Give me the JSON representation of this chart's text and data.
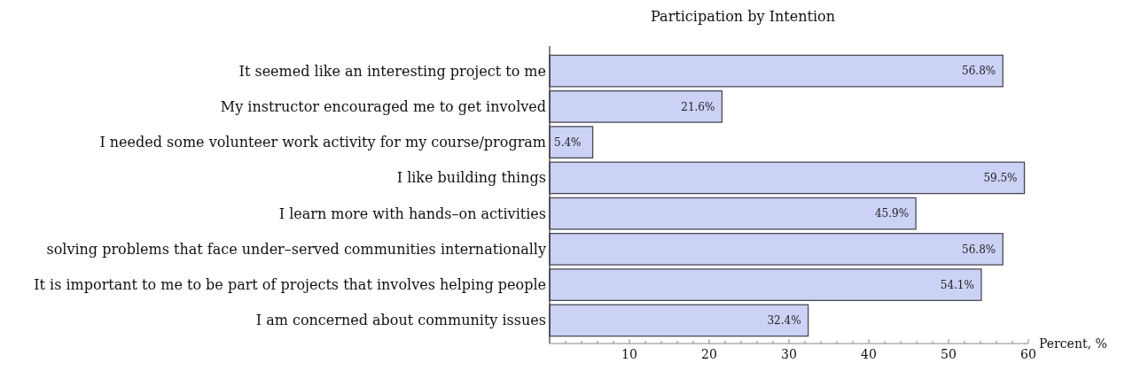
{
  "chart_data": {
    "type": "bar",
    "orientation": "horizontal",
    "title": "Participation by Intention",
    "xlabel": "Percent, %",
    "categories": [
      "It seemed like an interesting project to me",
      "My instructor encouraged me to get involved",
      "I needed some volunteer work activity for my course/program",
      "I like building things",
      "I learn more with hands–on activities",
      "solving problems that face under–served communities internationally",
      "It is important to me to be part of projects that involves helping people",
      "I am concerned about community issues"
    ],
    "values": [
      56.8,
      21.6,
      5.4,
      59.5,
      45.9,
      56.8,
      54.1,
      32.4
    ],
    "value_labels": [
      "56.8%",
      "21.6%",
      "5.4%",
      "59.5%",
      "45.9%",
      "56.8%",
      "54.1%",
      "32.4%"
    ],
    "color": "#ccd2f5",
    "xlim": [
      0,
      60
    ],
    "xticks": [
      {
        "value": 0,
        "label": null
      },
      {
        "value": 2,
        "label": null
      },
      {
        "value": 4,
        "label": null
      },
      {
        "value": 6,
        "label": null
      },
      {
        "value": 8,
        "label": null
      },
      10,
      {
        "value": 12,
        "label": null
      },
      {
        "value": 14,
        "label": null
      },
      {
        "value": 16,
        "label": null
      },
      {
        "value": 18,
        "label": null
      },
      20,
      {
        "value": 22,
        "label": null
      },
      {
        "value": 24,
        "label": null
      },
      {
        "value": 26,
        "label": null
      },
      {
        "value": 28,
        "label": null
      },
      30,
      {
        "value": 32,
        "label": null
      },
      {
        "value": 34,
        "label": null
      },
      {
        "value": 36,
        "label": null
      },
      {
        "value": 38,
        "label": null
      },
      40,
      {
        "value": 42,
        "label": null
      },
      {
        "value": 44,
        "label": null
      },
      {
        "value": 46,
        "label": null
      },
      {
        "value": 48,
        "label": null
      },
      50,
      {
        "value": 52,
        "label": null
      },
      {
        "value": 54,
        "label": null
      },
      {
        "value": 56,
        "label": null
      },
      {
        "value": 58,
        "label": null
      },
      60
    ],
    "grid": false
  }
}
